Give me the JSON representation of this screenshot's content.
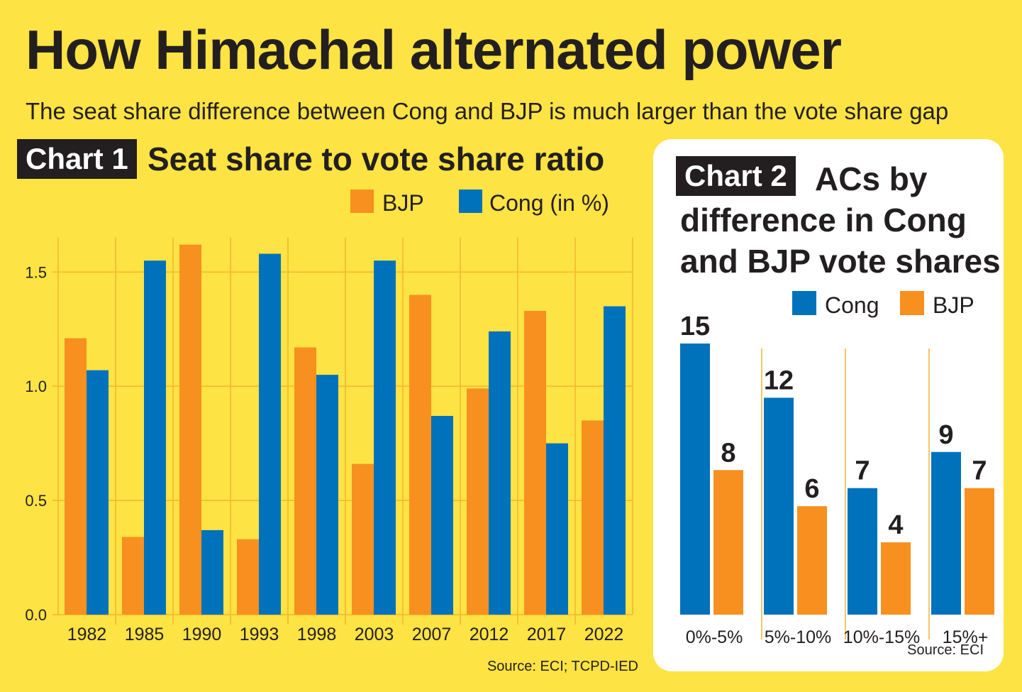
{
  "headline": "How Himachal alternated power",
  "subtitle": "The seat share difference between Cong and BJP is much larger than the vote share gap",
  "colors": {
    "background": "#fde343",
    "bjp": "#f7901e",
    "cong": "#0072bc",
    "ink": "#231f20",
    "grid": "#f5b431"
  },
  "chart1": {
    "tag": "Chart 1",
    "heading": "Seat share to vote share ratio",
    "source": "Source: ECI; TCPD-IED"
  },
  "chart2": {
    "tag": "Chart 2",
    "heading_lines": [
      "ACs by",
      "difference in Cong",
      "and BJP vote shares"
    ],
    "source": "Source: ECI"
  },
  "chart_data": [
    {
      "type": "bar",
      "title": "Seat share to vote share ratio",
      "categories": [
        "1982",
        "1985",
        "1990",
        "1993",
        "1998",
        "2003",
        "2007",
        "2012",
        "2017",
        "2022"
      ],
      "series": [
        {
          "name": "BJP",
          "color": "#f7901e",
          "values": [
            1.21,
            0.34,
            1.62,
            0.33,
            1.17,
            0.66,
            1.4,
            0.99,
            1.33,
            0.85
          ]
        },
        {
          "name": "Cong (in %)",
          "color": "#0072bc",
          "values": [
            1.07,
            1.55,
            0.37,
            1.58,
            1.05,
            1.55,
            0.87,
            1.24,
            0.75,
            1.35
          ]
        }
      ],
      "yticks": [
        "0.0",
        "0.5",
        "1.0",
        "1.5"
      ],
      "ylim": [
        0,
        1.65
      ],
      "grid": true,
      "legend_position": "top-right"
    },
    {
      "type": "bar",
      "title": "ACs by difference in Cong and BJP vote shares",
      "categories": [
        "0%-5%",
        "5%-10%",
        "10%-15%",
        "15%+"
      ],
      "series": [
        {
          "name": "Cong",
          "color": "#0072bc",
          "values": [
            15,
            12,
            7,
            9
          ]
        },
        {
          "name": "BJP",
          "color": "#f7901e",
          "values": [
            8,
            6,
            4,
            7
          ]
        }
      ],
      "ylim": [
        0,
        15
      ],
      "data_labels": true,
      "legend_position": "top-right"
    }
  ]
}
